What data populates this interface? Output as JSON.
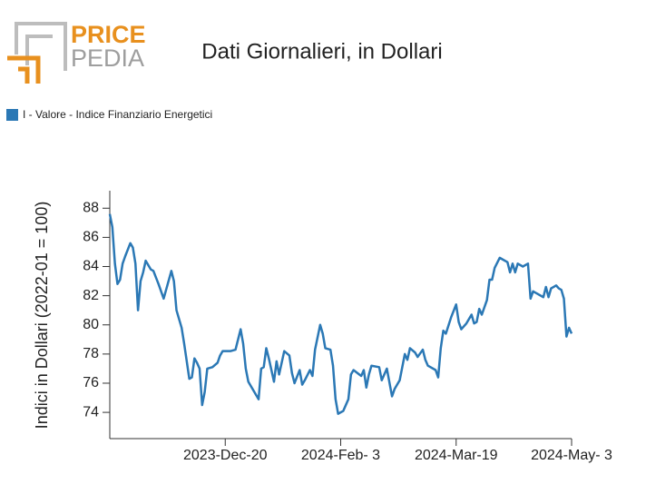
{
  "logo": {
    "line1": "PRICE",
    "line2": "PEDIA"
  },
  "chart_data": {
    "type": "line",
    "title": "Dati Giornalieri, in Dollari",
    "y_label": "Indici in Dollari (2022-01 = 100)",
    "legend": "top-left",
    "series": [
      {
        "name": "I - Valore - Indice Finanziario Energetici",
        "color": "#2b78b5",
        "values": [
          87.6,
          86.7,
          84.2,
          82.8,
          83.1,
          84.2,
          84.7,
          85.6,
          85.3,
          84.2,
          81.0,
          83.0,
          83.6,
          84.4,
          83.8,
          83.7,
          82.8,
          81.8,
          83.7,
          83.0,
          81.0,
          79.8,
          78.7,
          76.3,
          76.4,
          77.7,
          77.4,
          77.0,
          74.5,
          75.4,
          77.0,
          77.1,
          77.4,
          77.9,
          78.2,
          78.2,
          78.2,
          78.3,
          79.7,
          78.7,
          77.0,
          76.1,
          74.9,
          77.0,
          77.1,
          78.4,
          77.7,
          76.9,
          76.1,
          77.5,
          76.6,
          78.2,
          77.9,
          76.7,
          76.0,
          76.9,
          75.9,
          76.2,
          76.9,
          76.5,
          78.3,
          80.0,
          79.4,
          78.4,
          78.3,
          77.2,
          74.9,
          73.9,
          74.1,
          74.9,
          76.6,
          76.9,
          76.5,
          76.9,
          75.7,
          76.6,
          77.2,
          77.1,
          76.2,
          77.0,
          75.1,
          75.6,
          76.2,
          78.0,
          77.6,
          78.4,
          78.1,
          77.8,
          78.3,
          77.6,
          77.2,
          76.9,
          76.4,
          78.4,
          79.6,
          79.4,
          80.5,
          81.4,
          80.2,
          79.7,
          80.1,
          80.7,
          80.1,
          80.2,
          81.1,
          80.7,
          81.7,
          83.1,
          83.1,
          83.9,
          84.6,
          84.5,
          84.3,
          83.6,
          84.2,
          83.6,
          84.2,
          84.0,
          84.2,
          81.8,
          82.3,
          82.2,
          81.9,
          82.6,
          81.9,
          82.5,
          82.7,
          82.5,
          82.4,
          81.8,
          79.2,
          79.8,
          79.4
        ]
      }
    ],
    "x": [
      "2023-11-05",
      "2023-11-06",
      "2023-11-07",
      "2023-11-08",
      "2023-11-09",
      "2023-11-10",
      "2023-11-11",
      "2023-11-13",
      "2023-11-14",
      "2023-11-15",
      "2023-11-16",
      "2023-11-17",
      "2023-11-18",
      "2023-11-19",
      "2023-11-21",
      "2023-11-22",
      "2023-11-24",
      "2023-11-26",
      "2023-11-29",
      "2023-11-30",
      "2023-12-01",
      "2023-12-03",
      "2023-12-04",
      "2023-12-06",
      "2023-12-07",
      "2023-12-08",
      "2023-12-09",
      "2023-12-10",
      "2023-12-11",
      "2023-12-12",
      "2023-12-13",
      "2023-12-15",
      "2023-12-17",
      "2023-12-18",
      "2023-12-19",
      "2023-12-21",
      "2023-12-22",
      "2023-12-24",
      "2023-12-26",
      "2023-12-27",
      "2023-12-28",
      "2023-12-29",
      "2024-01-02",
      "2024-01-03",
      "2024-01-04",
      "2024-01-05",
      "2024-01-06",
      "2024-01-07",
      "2024-01-08",
      "2024-01-09",
      "2024-01-10",
      "2024-01-12",
      "2024-01-14",
      "2024-01-15",
      "2024-01-16",
      "2024-01-18",
      "2024-01-19",
      "2024-01-20",
      "2024-01-22",
      "2024-01-23",
      "2024-01-24",
      "2024-01-26",
      "2024-01-27",
      "2024-01-28",
      "2024-01-30",
      "2024-01-31",
      "2024-02-01",
      "2024-02-02",
      "2024-02-04",
      "2024-02-06",
      "2024-02-07",
      "2024-02-08",
      "2024-02-11",
      "2024-02-12",
      "2024-02-13",
      "2024-02-14",
      "2024-02-15",
      "2024-02-18",
      "2024-02-19",
      "2024-02-21",
      "2024-02-23",
      "2024-02-24",
      "2024-02-26",
      "2024-02-28",
      "2024-02-29",
      "2024-03-01",
      "2024-03-03",
      "2024-03-04",
      "2024-03-06",
      "2024-03-07",
      "2024-03-08",
      "2024-03-11",
      "2024-03-12",
      "2024-03-13",
      "2024-03-14",
      "2024-03-15",
      "2024-03-17",
      "2024-03-19",
      "2024-03-20",
      "2024-03-21",
      "2024-03-23",
      "2024-03-25",
      "2024-03-26",
      "2024-03-27",
      "2024-03-28",
      "2024-03-29",
      "2024-03-31",
      "2024-04-01",
      "2024-04-02",
      "2024-04-03",
      "2024-04-05",
      "2024-04-06",
      "2024-04-08",
      "2024-04-09",
      "2024-04-10",
      "2024-04-11",
      "2024-04-12",
      "2024-04-14",
      "2024-04-16",
      "2024-04-17",
      "2024-04-18",
      "2024-04-19",
      "2024-04-22",
      "2024-04-23",
      "2024-04-24",
      "2024-04-25",
      "2024-04-27",
      "2024-04-28",
      "2024-04-29",
      "2024-04-30",
      "2024-05-01",
      "2024-05-02",
      "2024-05-03"
    ],
    "xlim": [
      "2023-11-05",
      "2024-05-03"
    ],
    "xticks": [
      {
        "value": "2023-12-20",
        "label": "2023-Dec-20"
      },
      {
        "value": "2024-02-03",
        "label": "2024-Feb- 3"
      },
      {
        "value": "2024-03-19",
        "label": "2024-Mar-19"
      },
      {
        "value": "2024-05-03",
        "label": "2024-May- 3"
      }
    ],
    "ylim": [
      72.2,
      89.2
    ],
    "yticks": [
      74,
      76,
      78,
      80,
      82,
      84,
      86,
      88
    ],
    "grid": false
  }
}
